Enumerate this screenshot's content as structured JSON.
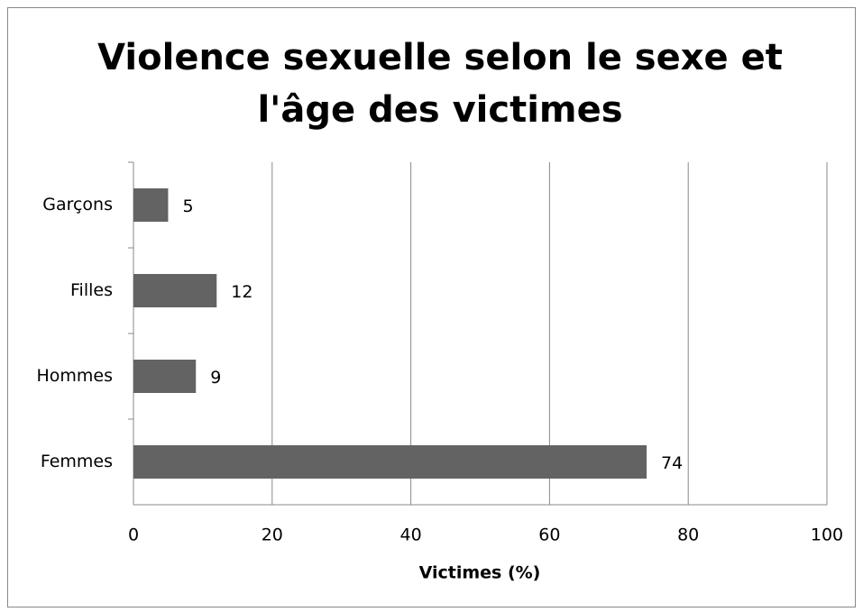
{
  "chart_data": {
    "type": "barh",
    "title": [
      "Violence sexuelle selon le sexe et",
      "l'âge des victimes"
    ],
    "xlabel": "Victimes (%)",
    "categories": [
      "Garçons",
      "Filles",
      "Hommes",
      "Femmes"
    ],
    "values": [
      5,
      12,
      9,
      74
    ],
    "color": "#636363",
    "xlim": [
      0,
      100
    ],
    "xticks": [
      0,
      20,
      40,
      60,
      80,
      100
    ],
    "grid": true
  }
}
